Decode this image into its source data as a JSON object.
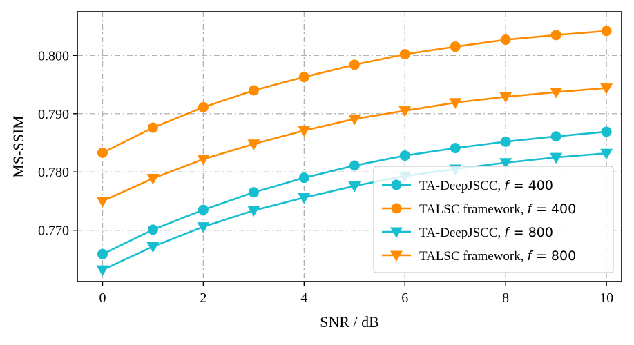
{
  "chart_data": {
    "type": "line",
    "xlabel": "SNR / dB",
    "ylabel": "MS-SSIM",
    "xlim": [
      -0.5,
      10.3
    ],
    "ylim": [
      0.7612,
      0.8075
    ],
    "xticks": [
      0,
      2,
      4,
      6,
      8,
      10
    ],
    "xtick_labels": [
      "0",
      "2",
      "4",
      "6",
      "8",
      "10"
    ],
    "yticks": [
      0.77,
      0.78,
      0.79,
      0.8
    ],
    "ytick_labels": [
      "0.770",
      "0.780",
      "0.790",
      "0.800"
    ],
    "grid": true,
    "grid_style": "dash-dot",
    "legend_position": "lower-right",
    "x": [
      0,
      1,
      2,
      3,
      4,
      5,
      6,
      7,
      8,
      9,
      10
    ],
    "series": [
      {
        "name": "TA-DeepJSCC, f = 400",
        "label_prefix": "TA-DeepJSCC, ",
        "f_symbol": "f",
        "f_value": "= 400",
        "color": "#17becf",
        "marker": "circle",
        "values": [
          0.7659,
          0.7701,
          0.7735,
          0.7765,
          0.779,
          0.7811,
          0.7828,
          0.7841,
          0.7852,
          0.7861,
          0.7869
        ]
      },
      {
        "name": "TALSC framework, f = 400",
        "label_prefix": "TALSC framework, ",
        "f_symbol": "f",
        "f_value": "= 400",
        "color": "#ff8c00",
        "marker": "circle",
        "values": [
          0.7833,
          0.7876,
          0.7911,
          0.794,
          0.7963,
          0.7984,
          0.8002,
          0.8015,
          0.8027,
          0.8035,
          0.8042
        ]
      },
      {
        "name": "TA-DeepJSCC, f = 800",
        "label_prefix": "TA-DeepJSCC, ",
        "f_symbol": "f",
        "f_value": "= 800",
        "color": "#17becf",
        "marker": "triangle-down",
        "values": [
          0.7632,
          0.7672,
          0.7706,
          0.7734,
          0.7756,
          0.7776,
          0.7793,
          0.7805,
          0.7816,
          0.7825,
          0.7832
        ]
      },
      {
        "name": "TALSC framework, f = 800",
        "label_prefix": "TALSC framework, ",
        "f_symbol": "f",
        "f_value": "= 800",
        "color": "#ff8c00",
        "marker": "triangle-down",
        "values": [
          0.775,
          0.7789,
          0.7822,
          0.7848,
          0.7871,
          0.7891,
          0.7905,
          0.7919,
          0.7929,
          0.7937,
          0.7944
        ]
      }
    ]
  }
}
